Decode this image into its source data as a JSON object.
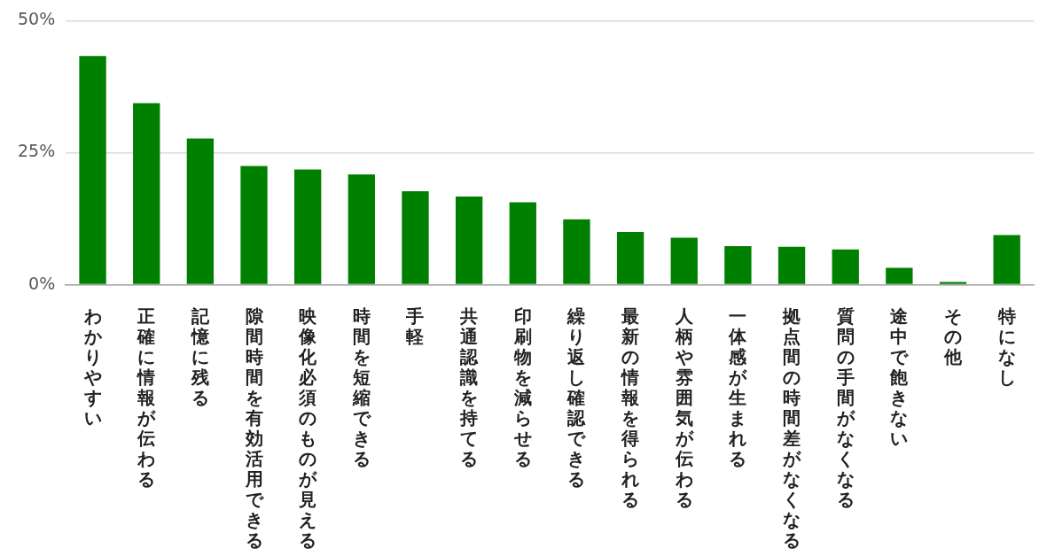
{
  "chart_data": {
    "type": "bar",
    "categories": [
      "わかりやすい",
      "正確に情報が伝わる",
      "記憶に残る",
      "隙間時間を有効活用できる",
      "映像化必須のものが見える",
      "時間を短縮できる",
      "手軽",
      "共通認識を持てる",
      "印刷物を減らせる",
      "繰り返し確認できる",
      "最新の情報を得られる",
      "人柄や雰囲気が伝わる",
      "一体感が生まれる",
      "拠点間の時間差がなくなる",
      "質問の手間がなくなる",
      "途中で飽きない",
      "その他",
      "特になし"
    ],
    "values": [
      43.3,
      34.4,
      27.7,
      22.5,
      21.8,
      20.9,
      17.7,
      16.7,
      15.6,
      12.4,
      10.0,
      8.9,
      7.3,
      7.2,
      6.7,
      3.2,
      0.5,
      9.4
    ],
    "color": "#008000",
    "ylim": [
      0,
      50
    ],
    "yticks": [
      {
        "value": 0,
        "label": "0%"
      },
      {
        "value": 25,
        "label": "25%"
      },
      {
        "value": 50,
        "label": "50%"
      }
    ],
    "grid": "y"
  }
}
